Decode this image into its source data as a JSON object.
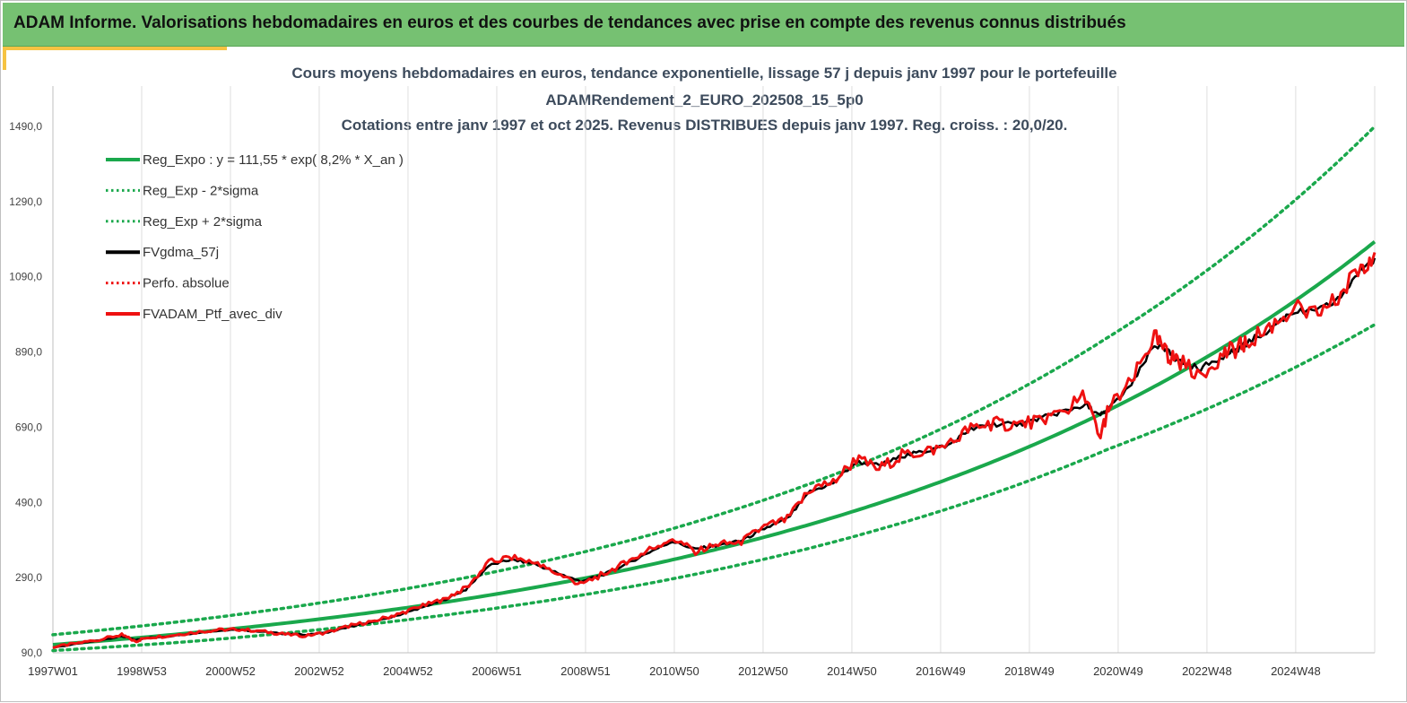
{
  "header": {
    "banner_text": "ADAM Informe. Valorisations hebdomadaires en euros et des courbes de tendances avec prise en compte des revenus connus distribués"
  },
  "colors": {
    "banner": "#76c172",
    "accent": "#f6c342",
    "trend": "#1aa84c",
    "smoothed": "#000000",
    "portfolio": "#ee1111"
  },
  "chart_data": {
    "type": "line",
    "title_lines": [
      "Cours moyens hebdomadaires  en euros, tendance exponentielle, lissage 57 j depuis janv 1997 pour le portefeuille",
      "ADAMRendement_2_EURO_202508_15_5p0",
      "Cotations  entre janv 1997 et oct 2025. Revenus DISTRIBUES depuis janv 1997. Reg. croiss. : 20,0/20."
    ],
    "xlabel": "",
    "ylabel": "",
    "ylim": [
      90,
      1490
    ],
    "y_ticks": [
      "90,0",
      "290,0",
      "490,0",
      "690,0",
      "890,0",
      "1090,0",
      "1290,0",
      "1490,0"
    ],
    "x_ticks": [
      "1997W01",
      "1998W53",
      "2000W52",
      "2002W52",
      "2004W52",
      "2006W51",
      "2008W51",
      "2010W50",
      "2012W50",
      "2014W50",
      "2016W49",
      "2018W49",
      "2020W49",
      "2022W48",
      "2024W48"
    ],
    "grid": "vertical",
    "legend_position": "top-left",
    "legend": [
      {
        "label": "Reg_Expo : y = 111,55 * exp( 8,2% *  X_an )",
        "color": "#1aa84c",
        "style": "solid"
      },
      {
        "label": "Reg_Exp - 2*sigma",
        "color": "#1aa84c",
        "style": "dotted"
      },
      {
        "label": "Reg_Exp + 2*sigma",
        "color": "#1aa84c",
        "style": "dotted"
      },
      {
        "label": "FVgdma_57j",
        "color": "#000000",
        "style": "solid"
      },
      {
        "label": "Perfo. absolue",
        "color": "#ee1111",
        "style": "dotted"
      },
      {
        "label": "FVADAM_Ptf_avec_div",
        "color": "#ee1111",
        "style": "solid"
      }
    ],
    "trend": {
      "a": 111.55,
      "rate": 0.082
    },
    "band_lower_points": [
      [
        1997.0,
        96
      ],
      [
        2000.0,
        120
      ],
      [
        2005.0,
        182
      ],
      [
        2010.0,
        275
      ],
      [
        2015.0,
        418
      ],
      [
        2020.0,
        632
      ],
      [
        2025.8,
        963
      ]
    ],
    "band_upper_points": [
      [
        1997.0,
        138
      ],
      [
        2000.0,
        176
      ],
      [
        2005.0,
        267
      ],
      [
        2010.0,
        403
      ],
      [
        2015.0,
        612
      ],
      [
        2020.0,
        930
      ],
      [
        2025.8,
        1490
      ]
    ],
    "x": [
      1997.0,
      1997.5,
      1998.0,
      1998.5,
      1998.8,
      1999.0,
      1999.5,
      2000.0,
      2000.5,
      2001.0,
      2001.5,
      2002.0,
      2002.5,
      2003.0,
      2003.5,
      2004.0,
      2004.5,
      2005.0,
      2005.5,
      2006.0,
      2006.5,
      2007.0,
      2007.5,
      2008.0,
      2008.5,
      2009.0,
      2009.5,
      2010.0,
      2010.5,
      2011.0,
      2011.5,
      2012.0,
      2012.5,
      2013.0,
      2013.5,
      2014.0,
      2014.5,
      2015.0,
      2015.5,
      2016.0,
      2016.5,
      2017.0,
      2017.5,
      2018.0,
      2018.5,
      2019.0,
      2019.5,
      2019.8,
      2020.0,
      2020.5,
      2021.0,
      2021.3,
      2021.5,
      2022.0,
      2022.5,
      2022.8,
      2023.0,
      2023.5,
      2024.0,
      2024.5,
      2025.0,
      2025.5,
      2025.8
    ],
    "series": [
      {
        "name": "FVADAM_Ptf_avec_div",
        "values": [
          105,
          115,
          125,
          138,
          120,
          130,
          135,
          143,
          150,
          153,
          148,
          140,
          135,
          145,
          163,
          175,
          192,
          212,
          232,
          262,
          330,
          345,
          328,
          300,
          272,
          300,
          330,
          365,
          395,
          360,
          378,
          385,
          425,
          445,
          525,
          545,
          605,
          580,
          615,
          625,
          640,
          690,
          700,
          695,
          710,
          730,
          775,
          660,
          740,
          810,
          930,
          880,
          870,
          830,
          885,
          900,
          915,
          955,
          1005,
          990,
          1030,
          1120,
          1155
        ]
      },
      {
        "name": "FVgdma_57j",
        "values": [
          104,
          113,
          123,
          134,
          124,
          129,
          134,
          141,
          148,
          151,
          147,
          141,
          138,
          145,
          160,
          172,
          189,
          209,
          229,
          258,
          322,
          338,
          326,
          302,
          280,
          298,
          326,
          358,
          386,
          366,
          376,
          388,
          420,
          446,
          518,
          542,
          598,
          588,
          612,
          626,
          642,
          684,
          698,
          697,
          712,
          732,
          750,
          720,
          738,
          800,
          910,
          890,
          868,
          845,
          880,
          898,
          912,
          950,
          998,
          995,
          1028,
          1110,
          1140
        ]
      }
    ]
  }
}
